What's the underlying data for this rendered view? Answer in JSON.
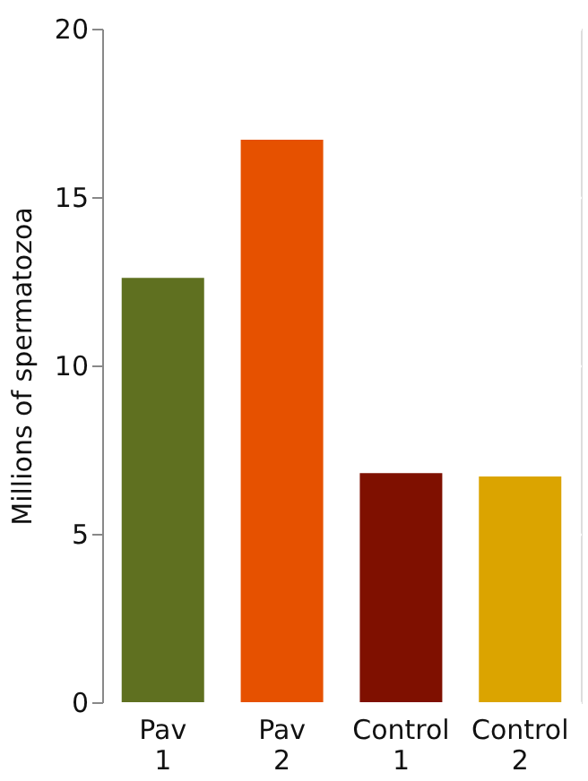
{
  "chart_data": {
    "type": "bar",
    "ylabel": "Millions of spermatozoa",
    "categories": [
      "Pav 1",
      "Pav 2",
      "Control 1",
      "Control 2"
    ],
    "values": [
      12.6,
      16.7,
      6.8,
      6.7
    ],
    "colors": [
      "#5f7020",
      "#e65100",
      "#7f1000",
      "#dba400"
    ],
    "ylim": [
      0,
      20
    ],
    "yticks": [
      0,
      5,
      10,
      15,
      20
    ],
    "grid": "y"
  }
}
